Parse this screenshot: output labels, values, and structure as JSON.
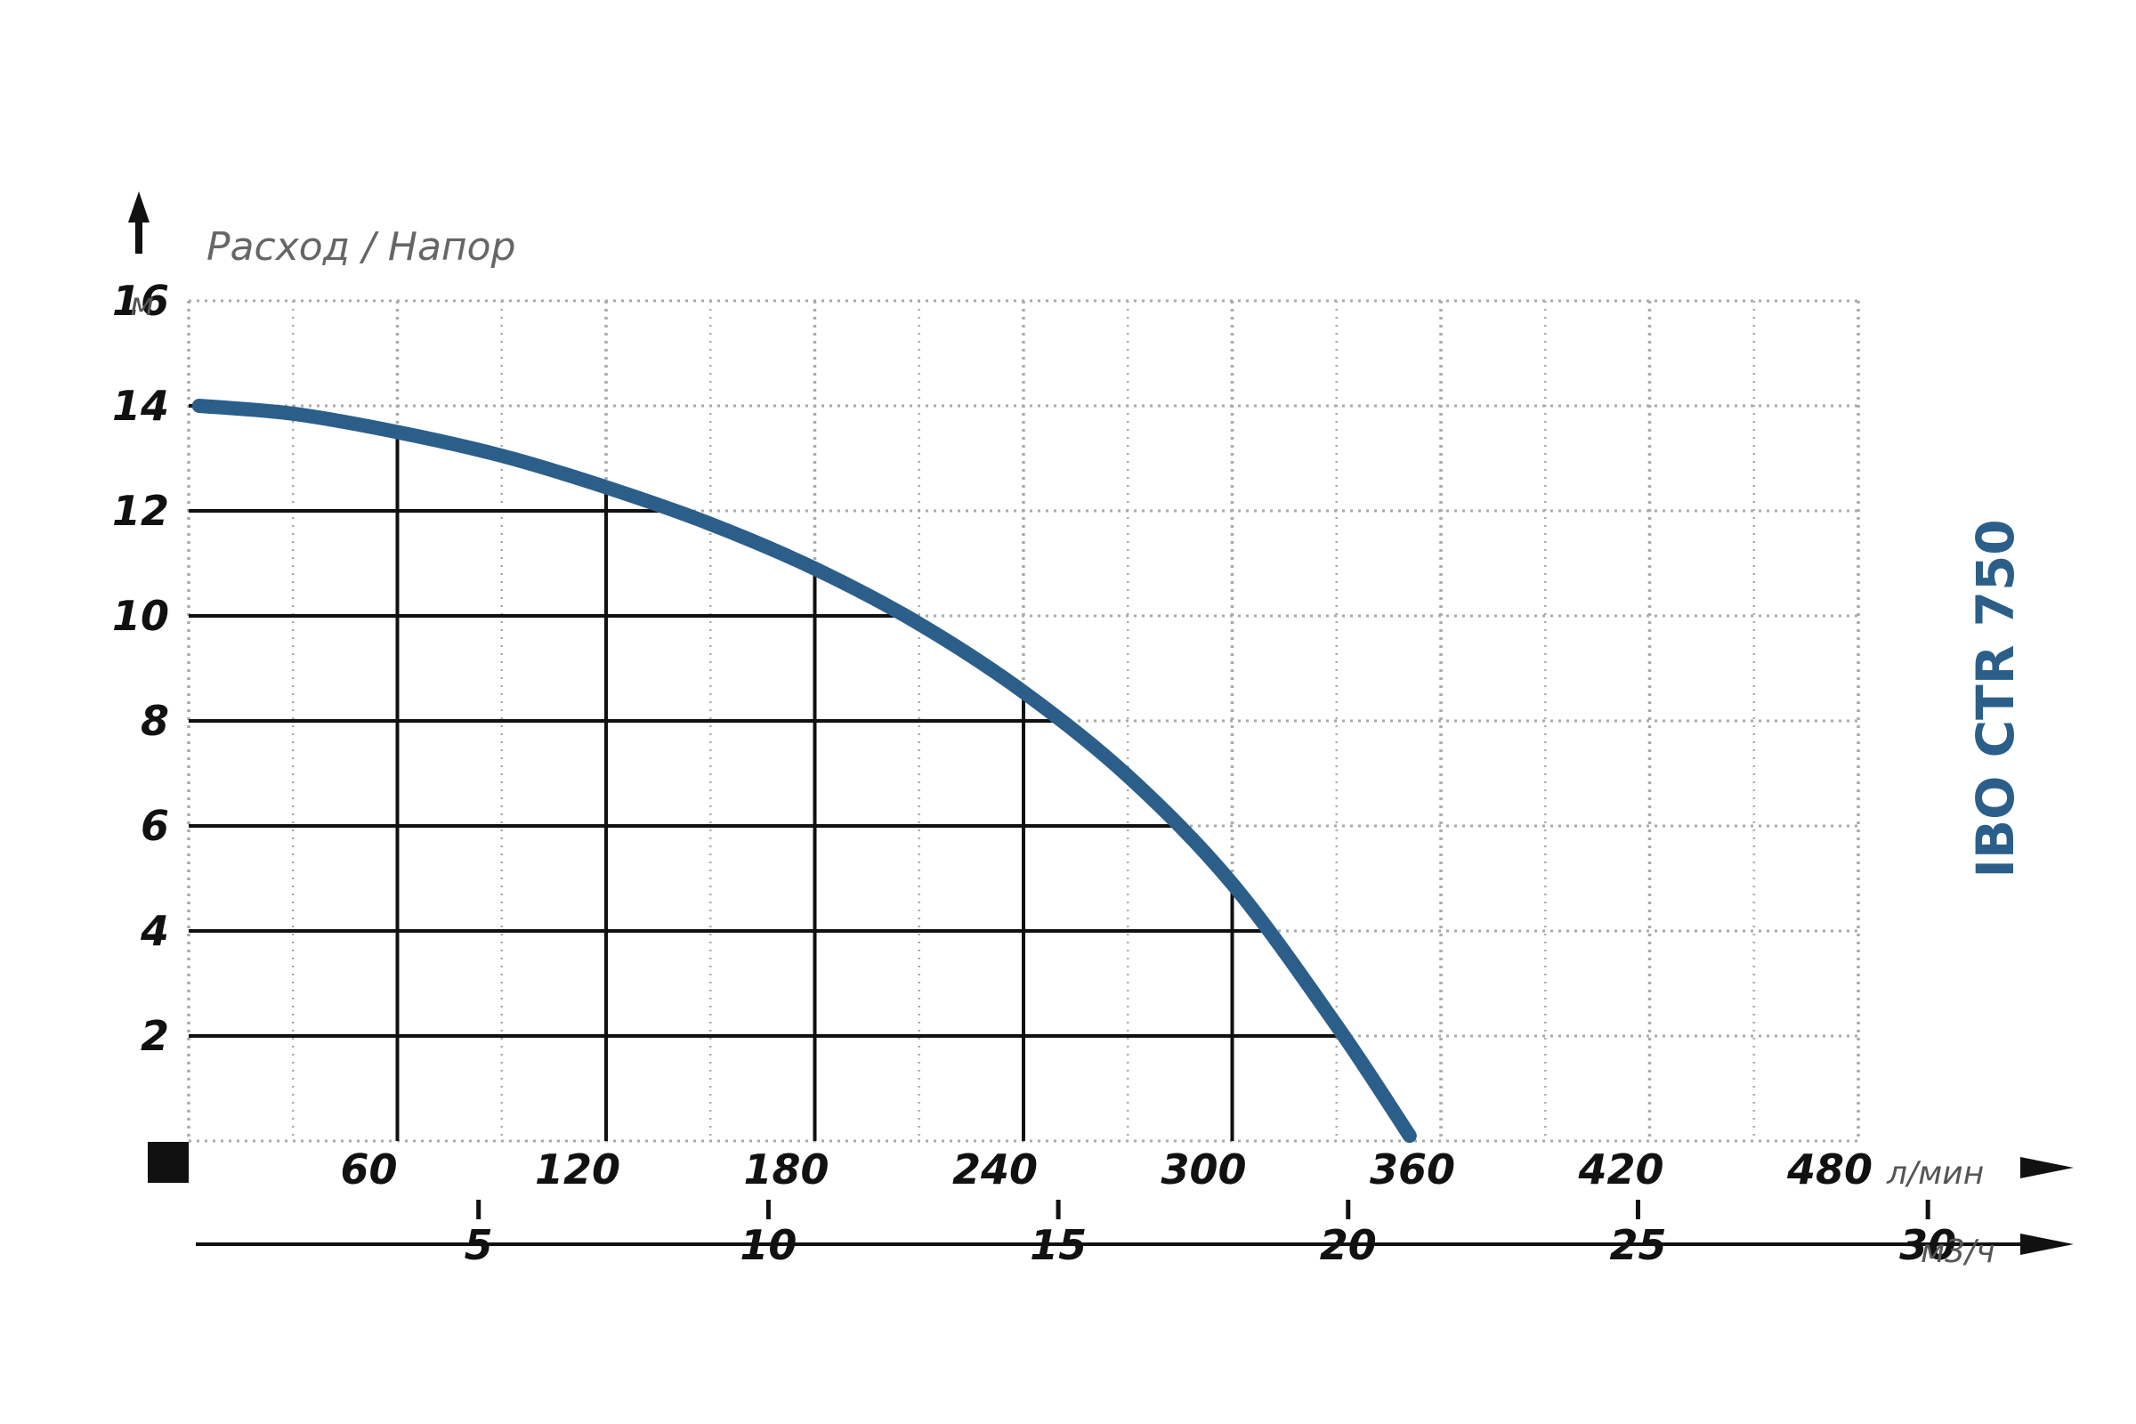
{
  "chart_data": {
    "type": "line",
    "title": "",
    "caption": "Расход / Напор",
    "model_label": "IBO CTR 750",
    "y_axis": {
      "unit": "м",
      "range": [
        0,
        16
      ],
      "ticks": [
        2,
        4,
        6,
        8,
        10,
        12,
        14,
        16
      ]
    },
    "x_axis_primary": {
      "unit": "л/мин",
      "range": [
        0,
        480
      ],
      "ticks": [
        60,
        120,
        180,
        240,
        300,
        360,
        420,
        480
      ]
    },
    "x_axis_secondary": {
      "unit": "м3/ч",
      "ticks": [
        5,
        10,
        15,
        20,
        25,
        30
      ]
    },
    "grid": true,
    "series": [
      {
        "color": "#2b5f8a",
        "x": [
          3,
          30,
          60,
          90,
          120,
          150,
          180,
          210,
          240,
          270,
          300,
          330,
          351
        ],
        "y": [
          14.0,
          13.85,
          13.5,
          13.05,
          12.45,
          11.75,
          10.9,
          9.85,
          8.55,
          6.95,
          4.9,
          2.2,
          0.1
        ]
      }
    ],
    "reference_lines": [
      {
        "x": 60,
        "y": 13.5
      },
      {
        "x": 120,
        "y": 12.45
      },
      {
        "x": 180,
        "y": 10.9
      },
      {
        "x": 240,
        "y": 8.55
      },
      {
        "x": 300,
        "y": 4.9
      }
    ],
    "colors": {
      "curve": "#2b5f8a",
      "model_label": "#2b5f8a",
      "grid": "#aaaaaa",
      "axis_lines": "#111111"
    }
  }
}
